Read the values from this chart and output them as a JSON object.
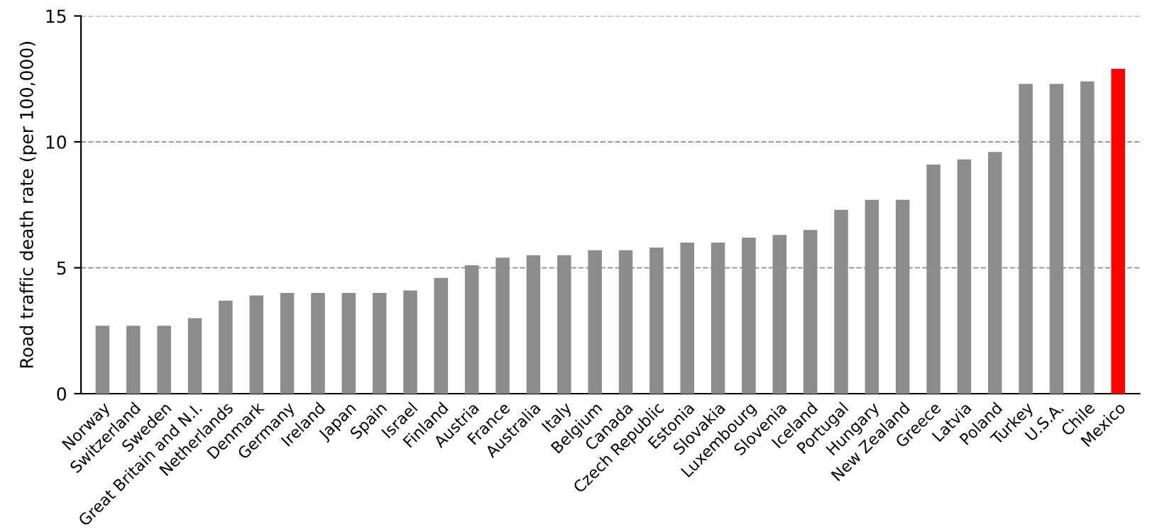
{
  "chart_data": {
    "type": "bar",
    "ylabel": "Road traffic death rate (per 100,000)",
    "categories": [
      "Norway",
      "Switzerland",
      "Sweden",
      "Great Britain and N.I.",
      "Netherlands",
      "Denmark",
      "Germany",
      "Ireland",
      "Japan",
      "Spain",
      "Israel",
      "Finland",
      "Austria",
      "France",
      "Australia",
      "Italy",
      "Belgium",
      "Canada",
      "Czech Republic",
      "Estonia",
      "Slovakia",
      "Luxembourg",
      "Slovenia",
      "Iceland",
      "Portugal",
      "Hungary",
      "New Zealand",
      "Greece",
      "Latvia",
      "Poland",
      "Turkey",
      "U.S.A.",
      "Chile",
      "Mexico"
    ],
    "values": [
      2.7,
      2.7,
      2.7,
      3.0,
      3.7,
      3.9,
      4.0,
      4.0,
      4.0,
      4.0,
      4.1,
      4.6,
      5.1,
      5.4,
      5.5,
      5.5,
      5.7,
      5.7,
      5.8,
      6.0,
      6.0,
      6.2,
      6.3,
      6.5,
      7.3,
      7.7,
      7.7,
      9.1,
      9.3,
      9.6,
      12.3,
      12.3,
      12.4,
      12.9
    ],
    "colors": [
      "#8c8c8c",
      "#8c8c8c",
      "#8c8c8c",
      "#8c8c8c",
      "#8c8c8c",
      "#8c8c8c",
      "#8c8c8c",
      "#8c8c8c",
      "#8c8c8c",
      "#8c8c8c",
      "#8c8c8c",
      "#8c8c8c",
      "#8c8c8c",
      "#8c8c8c",
      "#8c8c8c",
      "#8c8c8c",
      "#8c8c8c",
      "#8c8c8c",
      "#8c8c8c",
      "#8c8c8c",
      "#8c8c8c",
      "#8c8c8c",
      "#8c8c8c",
      "#8c8c8c",
      "#8c8c8c",
      "#8c8c8c",
      "#8c8c8c",
      "#8c8c8c",
      "#8c8c8c",
      "#8c8c8c",
      "#8c8c8c",
      "#8c8c8c",
      "#8c8c8c",
      "#ff0000"
    ],
    "ylim": [
      0,
      15
    ],
    "yticks": [
      0,
      5,
      10,
      15
    ],
    "grid": "y"
  }
}
